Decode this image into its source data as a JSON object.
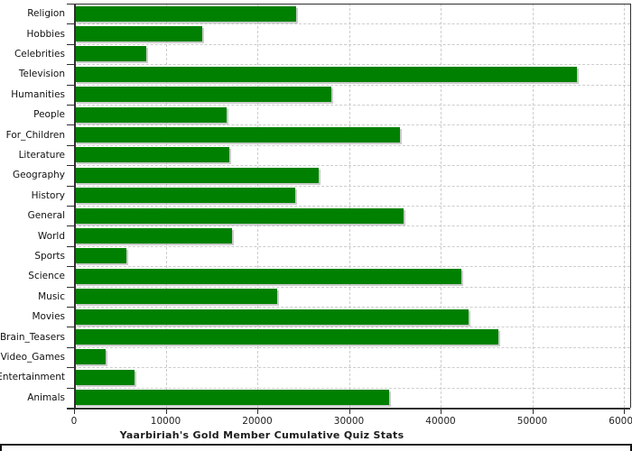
{
  "title": "Yaarbiriah's Gold Member Cumulative Quiz Stats",
  "chart_data": {
    "type": "bar",
    "orientation": "horizontal",
    "title": "Yaarbiriah's Gold Member Cumulative Quiz Stats",
    "categories": [
      "Religion",
      "Hobbies",
      "Celebrities",
      "Television",
      "Humanities",
      "People",
      "For_Children",
      "Literature",
      "Geography",
      "History",
      "General",
      "World",
      "Sports",
      "Science",
      "Music",
      "Movies",
      "Brain_Teasers",
      "Video_Games",
      "Entertainment",
      "Animals"
    ],
    "values": [
      24100,
      13900,
      7800,
      54800,
      28000,
      16600,
      35500,
      16800,
      26600,
      24000,
      35900,
      17100,
      5600,
      42200,
      22100,
      43000,
      46200,
      3350,
      6500,
      34300
    ],
    "xlim": [
      0,
      60000
    ],
    "xticks": [
      0,
      10000,
      20000,
      30000,
      40000,
      50000,
      60000
    ],
    "xtick_labels": [
      "0",
      "10000",
      "20000",
      "30000",
      "40000",
      "50000",
      "60000"
    ],
    "grid": "dashed",
    "legend": "none",
    "bar_color": "#008000",
    "bar_shadow_color": "#c6c6c6",
    "grid_color": "#cdcdcd",
    "axis_color": "#2f2f2f",
    "background": "#ffffff"
  }
}
